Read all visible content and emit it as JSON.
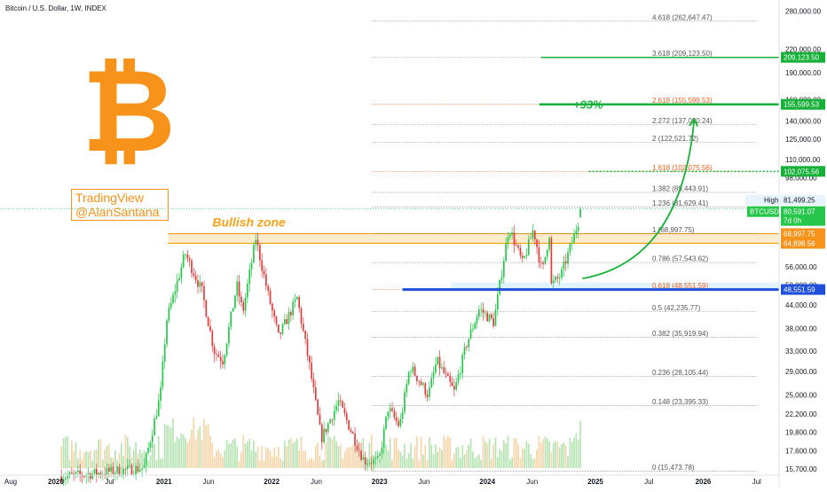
{
  "header": {
    "title": "Bitcoin / U.S. Dollar, 1W, INDEX"
  },
  "watermark": {
    "line1": "TradingView",
    "line2": "@AlanSantana"
  },
  "logo": {
    "glyph": "₿",
    "icon": "bitcoin-icon",
    "color": "#f7931a"
  },
  "colors": {
    "up": "#22ab94",
    "up_bright": "#26c64a",
    "down": "#e03b3b",
    "accent_green": "#17b13a",
    "fib_red": "#f2601e",
    "support_blue": "#1f4fdb",
    "zone_orange": "#f7a21a"
  },
  "chart_data": {
    "type": "candlestick",
    "symbol": "BTCUSD",
    "title": "Bitcoin / U.S. Dollar, 1W, INDEX",
    "y_scale": "log",
    "ylim": [
      15100,
      300000
    ],
    "xlim": [
      "2019-06-26",
      "2026-09-15"
    ],
    "x_ticks": [
      "Aug",
      "2020",
      "Jul",
      "2021",
      "Jun",
      "2022",
      "Jun",
      "2023",
      "Jun",
      "2024",
      "Jun",
      "2025",
      "Jul",
      "2026",
      "Jul"
    ],
    "y_ticks": [
      "280,000.00",
      "220,000.00",
      "190,000.00",
      "160,000.00",
      "140,000.00",
      "125,000.00",
      "110,000.00",
      "98,000.00",
      "56,000.00",
      "50,000.00",
      "44,000.00",
      "38,000.00",
      "33,000.00",
      "29,000.00",
      "25,000.00",
      "22,200.00",
      "19,800.00",
      "17,600.00",
      "15,700.00"
    ],
    "price_key_points": [
      {
        "date": "2020-02-15",
        "price": 15000
      },
      {
        "date": "2020-10-25",
        "price": 15800
      },
      {
        "date": "2020-12-20",
        "price": 25000
      },
      {
        "date": "2021-01-10",
        "price": 40000
      },
      {
        "date": "2021-03-14",
        "price": 61000
      },
      {
        "date": "2021-05-10",
        "price": 48000
      },
      {
        "date": "2021-06-20",
        "price": 33000
      },
      {
        "date": "2021-07-20",
        "price": 31000
      },
      {
        "date": "2021-09-05",
        "price": 50000
      },
      {
        "date": "2021-09-25",
        "price": 42000
      },
      {
        "date": "2021-11-08",
        "price": 67000
      },
      {
        "date": "2021-12-20",
        "price": 47000
      },
      {
        "date": "2022-01-24",
        "price": 36000
      },
      {
        "date": "2022-03-28",
        "price": 46000
      },
      {
        "date": "2022-05-09",
        "price": 30000
      },
      {
        "date": "2022-06-18",
        "price": 19000
      },
      {
        "date": "2022-08-15",
        "price": 24000
      },
      {
        "date": "2022-11-10",
        "price": 16500
      },
      {
        "date": "2022-12-30",
        "price": 16500
      },
      {
        "date": "2023-01-30",
        "price": 23000
      },
      {
        "date": "2023-03-10",
        "price": 20500
      },
      {
        "date": "2023-04-14",
        "price": 30000
      },
      {
        "date": "2023-06-15",
        "price": 25000
      },
      {
        "date": "2023-07-14",
        "price": 31000
      },
      {
        "date": "2023-09-11",
        "price": 25500
      },
      {
        "date": "2023-10-23",
        "price": 34500
      },
      {
        "date": "2023-12-05",
        "price": 43000
      },
      {
        "date": "2024-01-23",
        "price": 39500
      },
      {
        "date": "2024-03-14",
        "price": 72000
      },
      {
        "date": "2024-04-30",
        "price": 57000
      },
      {
        "date": "2024-06-05",
        "price": 71000
      },
      {
        "date": "2024-07-05",
        "price": 54000
      },
      {
        "date": "2024-07-29",
        "price": 69000
      },
      {
        "date": "2024-08-05",
        "price": 50000
      },
      {
        "date": "2024-09-06",
        "price": 53000
      },
      {
        "date": "2024-10-21",
        "price": 68000
      },
      {
        "date": "2024-11-07",
        "price": 76000
      },
      {
        "date": "2024-11-11",
        "price": 80591
      }
    ],
    "volume_bars_visible": true,
    "fib_levels": [
      {
        "label": "4.618 (262,647.47)",
        "value": 262647.47,
        "color": "#808080"
      },
      {
        "label": "3.618 (209,123.50)",
        "value": 209123.5,
        "color": "#808080"
      },
      {
        "label": "2.618 (155,599.53)",
        "value": 155599.53,
        "color": "#f2601e"
      },
      {
        "label": "2.272 (137,080.24)",
        "value": 137080.24,
        "color": "#808080"
      },
      {
        "label": "2 (122,521.72)",
        "value": 122521.72,
        "color": "#808080"
      },
      {
        "label": "1.618 (102,075.56)",
        "value": 102075.56,
        "color": "#f2601e"
      },
      {
        "label": "1.382 (89,443.91)",
        "value": 89443.91,
        "color": "#808080"
      },
      {
        "label": "1.236 (81,629.41)",
        "value": 81629.41,
        "color": "#808080"
      },
      {
        "label": "1 (68,997.75)",
        "value": 68997.75,
        "color": "#808080"
      },
      {
        "label": "0.786 (57,543.62)",
        "value": 57543.62,
        "color": "#808080"
      },
      {
        "label": "0.618 (48,551.59)",
        "value": 48551.59,
        "color": "#f2601e"
      },
      {
        "label": "0.5 (42,235.77)",
        "value": 42235.77,
        "color": "#808080"
      },
      {
        "label": "0.382 (35,919.94)",
        "value": 35919.94,
        "color": "#808080"
      },
      {
        "label": "0.236 (28,105.44)",
        "value": 28105.44,
        "color": "#808080"
      },
      {
        "label": "0.148 (23,395.33)",
        "value": 23395.33,
        "color": "#808080"
      },
      {
        "label": "0 (15,473.78)",
        "value": 15473.78,
        "color": "#808080"
      }
    ],
    "price_labels": [
      {
        "text": "209,123.50",
        "value": 209123.5,
        "color": "#17b13a"
      },
      {
        "text": "155,599.53",
        "value": 155599.53,
        "color": "#17b13a"
      },
      {
        "text": "102,075.56",
        "value": 102075.56,
        "color": "#17b13a"
      },
      {
        "text": "68,997.75",
        "value": 68997.75,
        "color": "#f7931a"
      },
      {
        "text": "64,898.56",
        "value": 64898.56,
        "color": "#f7931a"
      },
      {
        "text": "48,551.59",
        "value": 48551.59,
        "color": "#1f4fdb"
      }
    ],
    "high_label": {
      "text": "High",
      "value_text": "81,499.25",
      "value": 81499.25
    },
    "current_price": {
      "symbol": "BTCUSD",
      "value_text": "80,591.07",
      "countdown": "7d 0h",
      "value": 80591.07
    },
    "annotations": {
      "bullish_zone": {
        "text": "Bullish zone",
        "low": 64898.56,
        "high": 68997.75,
        "start": "2021-01-15"
      },
      "projection": {
        "text": "+93%"
      },
      "support_line": {
        "value": 48551.59,
        "start": "2023-03-20"
      },
      "target_lines": [
        {
          "value": 209123.5,
          "start": "2024-07-01",
          "style": "solid"
        },
        {
          "value": 155599.53,
          "start": "2024-06-25",
          "style": "solid"
        },
        {
          "value": 102075.56,
          "start": "2024-12-10",
          "style": "dotted"
        }
      ]
    }
  }
}
